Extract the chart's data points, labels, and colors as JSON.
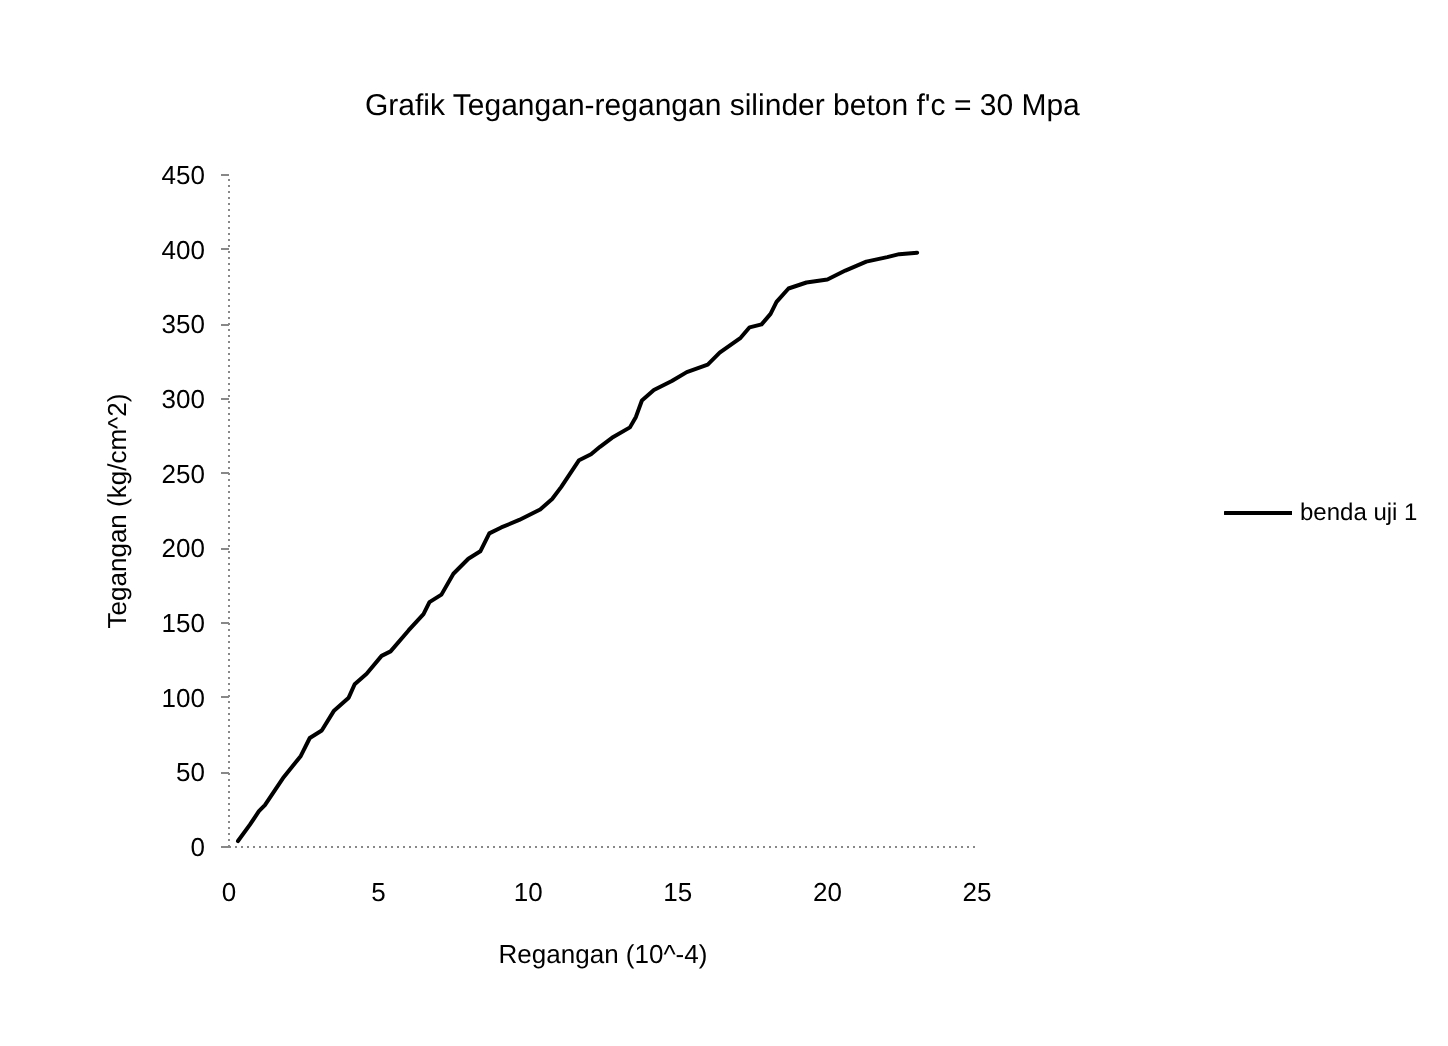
{
  "chart_data": {
    "type": "line",
    "title": "Grafik Tegangan-regangan silinder beton f'c = 30 Mpa",
    "xlabel": "Regangan (10^-4)",
    "ylabel": "Tegangan (kg/cm^2)",
    "xlim": [
      0,
      25
    ],
    "ylim": [
      0,
      450
    ],
    "xticks": [
      0,
      5,
      10,
      15,
      20,
      25
    ],
    "yticks": [
      0,
      50,
      100,
      150,
      200,
      250,
      300,
      350,
      400,
      450
    ],
    "grid": false,
    "legend": "right",
    "marker": "none",
    "line_style": "solid",
    "series": [
      {
        "name": "benda uji 1",
        "color": "#000000",
        "x": [
          0.3,
          0.7,
          1.0,
          1.2,
          1.8,
          2.4,
          2.7,
          3.1,
          3.5,
          4.0,
          4.2,
          4.6,
          5.1,
          5.4,
          6.0,
          6.5,
          6.7,
          7.1,
          7.5,
          8.0,
          8.4,
          8.7,
          9.1,
          9.7,
          10.4,
          10.8,
          11.1,
          11.4,
          11.7,
          12.1,
          12.4,
          12.8,
          13.4,
          13.6,
          13.8,
          14.2,
          14.8,
          15.3,
          16.0,
          16.4,
          17.1,
          17.4,
          17.8,
          18.1,
          18.3,
          18.7,
          19.3,
          20.0,
          20.6,
          21.3,
          22.0,
          22.4,
          23.0
        ],
        "values": [
          4,
          15,
          24,
          28,
          46,
          61,
          73,
          78,
          91,
          100,
          109,
          116,
          128,
          131,
          145,
          156,
          164,
          169,
          183,
          193,
          198,
          210,
          214,
          219,
          226,
          233,
          241,
          250,
          259,
          263,
          268,
          274,
          281,
          288,
          299,
          306,
          312,
          318,
          323,
          331,
          341,
          348,
          350,
          357,
          365,
          374,
          378,
          380,
          386,
          392,
          395,
          397,
          398
        ]
      }
    ]
  }
}
